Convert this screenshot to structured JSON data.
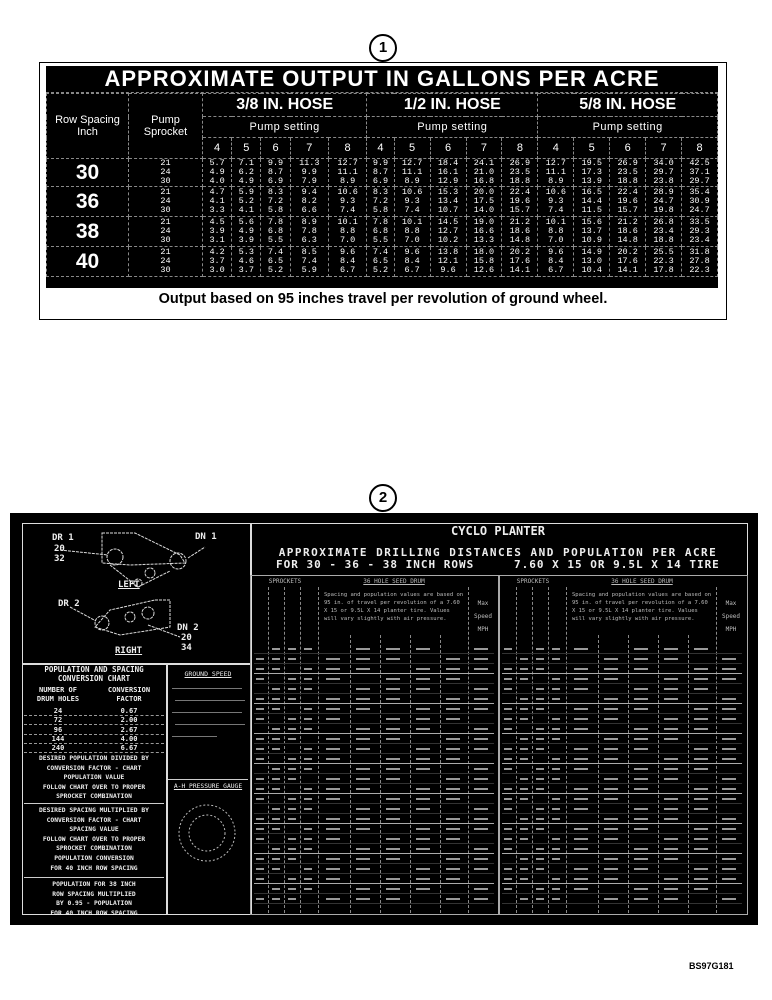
{
  "figure1": {
    "callout": "1",
    "title": "APPROXIMATE OUTPUT IN GALLONS PER ACRE",
    "col_row_spacing": "Row Spacing Inch",
    "col_pump_sprocket": "Pump Sprocket",
    "pump_setting_label": "Pump setting",
    "hoses": [
      "3/8 IN. HOSE",
      "1/2 IN. HOSE",
      "5/8 IN. HOSE"
    ],
    "pump_settings": [
      "4",
      "5",
      "6",
      "7",
      "8"
    ],
    "sprockets": [
      "21",
      "24",
      "30"
    ],
    "rows": [
      {
        "spacing": "30",
        "values": [
          [
            "5.7",
            "7.1",
            "9.9",
            "11.3",
            "12.7",
            "9.9",
            "12.7",
            "18.4",
            "24.1",
            "26.9",
            "12.7",
            "19.5",
            "26.9",
            "34.0",
            "42.5"
          ],
          [
            "4.9",
            "6.2",
            "8.7",
            "9.9",
            "11.1",
            "8.7",
            "11.1",
            "16.1",
            "21.0",
            "23.5",
            "11.1",
            "17.3",
            "23.5",
            "29.7",
            "37.1"
          ],
          [
            "4.0",
            "4.9",
            "6.9",
            "7.9",
            "8.9",
            "6.9",
            "8.9",
            "12.9",
            "16.8",
            "18.8",
            "8.9",
            "13.9",
            "18.8",
            "23.8",
            "29.7"
          ]
        ]
      },
      {
        "spacing": "36",
        "values": [
          [
            "4.7",
            "5.9",
            "8.3",
            "9.4",
            "10.6",
            "8.3",
            "10.6",
            "15.3",
            "20.0",
            "22.4",
            "10.6",
            "16.5",
            "22.4",
            "28.9",
            "35.4"
          ],
          [
            "4.1",
            "5.2",
            "7.2",
            "8.2",
            "9.3",
            "7.2",
            "9.3",
            "13.4",
            "17.5",
            "19.6",
            "9.3",
            "14.4",
            "19.6",
            "24.7",
            "30.9"
          ],
          [
            "3.3",
            "4.1",
            "5.8",
            "6.6",
            "7.4",
            "5.8",
            "7.4",
            "10.7",
            "14.0",
            "15.7",
            "7.4",
            "11.5",
            "15.7",
            "19.8",
            "24.7"
          ]
        ]
      },
      {
        "spacing": "38",
        "values": [
          [
            "4.5",
            "5.6",
            "7.8",
            "8.9",
            "10.1",
            "7.8",
            "10.1",
            "14.5",
            "19.0",
            "21.2",
            "10.1",
            "15.6",
            "21.2",
            "26.8",
            "33.5"
          ],
          [
            "3.9",
            "4.9",
            "6.8",
            "7.8",
            "8.8",
            "6.8",
            "8.8",
            "12.7",
            "16.6",
            "18.6",
            "8.8",
            "13.7",
            "18.6",
            "23.4",
            "29.3"
          ],
          [
            "3.1",
            "3.9",
            "5.5",
            "6.3",
            "7.0",
            "5.5",
            "7.0",
            "10.2",
            "13.3",
            "14.8",
            "7.0",
            "10.9",
            "14.8",
            "18.8",
            "23.4"
          ]
        ]
      },
      {
        "spacing": "40",
        "values": [
          [
            "4.2",
            "5.3",
            "7.4",
            "8.5",
            "9.6",
            "7.4",
            "9.6",
            "13.8",
            "18.0",
            "20.2",
            "9.6",
            "14.9",
            "20.2",
            "25.5",
            "31.8"
          ],
          [
            "3.7",
            "4.6",
            "6.5",
            "7.4",
            "8.4",
            "6.5",
            "8.4",
            "12.1",
            "15.8",
            "17.6",
            "8.4",
            "13.0",
            "17.6",
            "22.3",
            "27.8"
          ],
          [
            "3.0",
            "3.7",
            "5.2",
            "5.9",
            "6.7",
            "5.2",
            "6.7",
            "9.6",
            "12.6",
            "14.1",
            "6.7",
            "10.4",
            "14.1",
            "17.8",
            "22.3"
          ]
        ]
      }
    ],
    "footnote": "Output based on 95 inches travel per revolution of ground wheel."
  },
  "figure2": {
    "callout": "2",
    "title": "CYCLO PLANTER",
    "subtitle1": "APPROXIMATE DRILLING DISTANCES AND POPULATION PER ACRE",
    "subtitle2a": "FOR 30 - 36 - 38 INCH ROWS",
    "subtitle2b": "7.60 X 15 OR 9.5L X 14 TIRE",
    "diagram": {
      "dr1": "DR 1",
      "dr1_vals": "20\n32",
      "dn1": "DN 1",
      "left": "LEFT",
      "dr2": "DR 2",
      "dn2": "DN 2",
      "dn2_vals": "20\n34",
      "right": "RIGHT"
    },
    "conversion": {
      "title": "POPULATION AND SPACING\nCONVERSION CHART",
      "col1": "NUMBER OF\nDRUM HOLES",
      "col2": "CONVERSION\nFACTOR",
      "rows": [
        [
          "24",
          "0.67"
        ],
        [
          "72",
          "2.00"
        ],
        [
          "96",
          "2.67"
        ],
        [
          "144",
          "4.00"
        ],
        [
          "240",
          "6.67"
        ]
      ],
      "note1": "DESIRED POPULATION DIVIDED BY\nCONVERSION FACTOR - CHART\nPOPULATION VALUE\nFOLLOW CHART OVER TO PROPER\nSPROCKET COMBINATION",
      "note2": "DESIRED SPACING MULTIPLIED BY\nCONVERSION FACTOR - CHART\nSPACING VALUE\nFOLLOW CHART OVER TO PROPER\nSPROCKET COMBINATION",
      "note3": "POPULATION CONVERSION\nFOR 40 INCH ROW SPACING",
      "note4": "POPULATION FOR 38 INCH\nROW SPACING MULTIPLIED\nBY 0.95 - POPULATION\nFOR 40 INCH ROW SPACING"
    },
    "ground_speed": "GROUND SPEED",
    "pressure_gauge": "A-H PRESSURE GAUGE",
    "sprockets_label": "SPROCKETS",
    "drum_label": "36 HOLE SEED DRUM",
    "drum_note": "Spacing and population values are based on 95 in. of travel per revolution of a 7.60 X 15 or 9.5L X 14 planter tire. Values will vary slightly with air pressure.",
    "max_speed": "Max\nSpeed\nMPH"
  },
  "figure_code": "BS97G181"
}
